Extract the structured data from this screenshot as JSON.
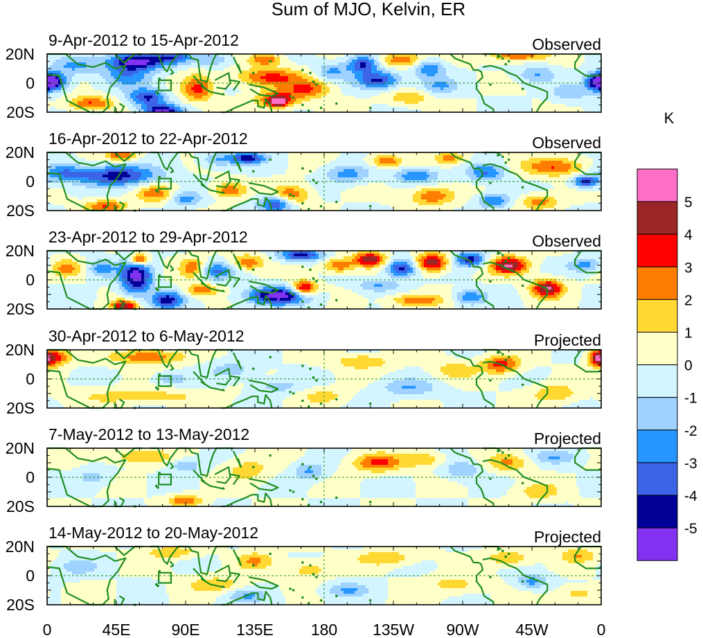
{
  "chart_data": {
    "type": "heatmap",
    "title": "Sum of MJO, Kelvin, ER",
    "units": "K",
    "x_ticks": [
      "0",
      "45E",
      "90E",
      "135E",
      "180",
      "135W",
      "90W",
      "45W",
      "0"
    ],
    "y_ticks": [
      "20N",
      "0",
      "20S"
    ],
    "xlim": [
      0,
      360
    ],
    "ylim": [
      -20,
      20
    ],
    "colorbar": {
      "levels": [
        "5",
        "4",
        "3",
        "2",
        "1",
        "0",
        "-1",
        "-2",
        "-3",
        "-4",
        "-5"
      ],
      "colors": [
        "#ff6ec7",
        "#9c2626",
        "#ff0000",
        "#ff7d00",
        "#ffd932",
        "#ffffc8",
        "#d2f5ff",
        "#a0d2ff",
        "#2896ff",
        "#3c64e6",
        "#000096",
        "#8232f0"
      ]
    },
    "panels": [
      {
        "date_range": "9-Apr-2012 to 15-Apr-2012",
        "status": "Observed",
        "features": [
          {
            "lon": 4,
            "lat": 1,
            "val": -4.5,
            "rx": 10,
            "ry": 6
          },
          {
            "lon": 28,
            "lat": -14,
            "val": 3.2,
            "rx": 14,
            "ry": 5
          },
          {
            "lon": 58,
            "lat": 15,
            "val": -5.5,
            "rx": 18,
            "ry": 6
          },
          {
            "lon": 52,
            "lat": 5,
            "val": -2.5,
            "rx": 16,
            "ry": 8
          },
          {
            "lon": 18,
            "lat": 12,
            "val": -2.2,
            "rx": 14,
            "ry": 6
          },
          {
            "lon": 65,
            "lat": -10,
            "val": -4.2,
            "rx": 12,
            "ry": 6
          },
          {
            "lon": 82,
            "lat": 18,
            "val": -3,
            "rx": 12,
            "ry": 5
          },
          {
            "lon": 98,
            "lat": -4,
            "val": 3.2,
            "rx": 10,
            "ry": 9
          },
          {
            "lon": 75,
            "lat": -19,
            "val": -5.2,
            "rx": 12,
            "ry": 4
          },
          {
            "lon": 108,
            "lat": 16,
            "val": -1.8,
            "rx": 12,
            "ry": 5
          },
          {
            "lon": 145,
            "lat": 4,
            "val": 3.3,
            "rx": 22,
            "ry": 6
          },
          {
            "lon": 150,
            "lat": -11,
            "val": 3.6,
            "rx": 14,
            "ry": 6
          },
          {
            "lon": 150,
            "lat": -13,
            "val": 5,
            "rx": 5,
            "ry": 3
          },
          {
            "lon": 142,
            "lat": 16,
            "val": 3,
            "rx": 10,
            "ry": 4
          },
          {
            "lon": 170,
            "lat": -4,
            "val": 3,
            "rx": 14,
            "ry": 6
          },
          {
            "lon": 185,
            "lat": 8,
            "val": -2.2,
            "rx": 10,
            "ry": 6
          },
          {
            "lon": 205,
            "lat": 13,
            "val": -4.3,
            "rx": 10,
            "ry": 6
          },
          {
            "lon": 215,
            "lat": 2,
            "val": -4.3,
            "rx": 14,
            "ry": 6
          },
          {
            "lon": 230,
            "lat": 16,
            "val": 3,
            "rx": 14,
            "ry": 5
          },
          {
            "lon": 248,
            "lat": 10,
            "val": -3,
            "rx": 10,
            "ry": 6
          },
          {
            "lon": 255,
            "lat": -2,
            "val": -2,
            "rx": 12,
            "ry": 6
          },
          {
            "lon": 235,
            "lat": -10,
            "val": 2,
            "rx": 14,
            "ry": 5
          },
          {
            "lon": 305,
            "lat": 19,
            "val": 3,
            "rx": 18,
            "ry": 4
          },
          {
            "lon": 318,
            "lat": 6,
            "val": -2,
            "rx": 12,
            "ry": 6
          },
          {
            "lon": 340,
            "lat": -7,
            "val": -1.8,
            "rx": 12,
            "ry": 6
          },
          {
            "lon": 358,
            "lat": 1,
            "val": -4.5,
            "rx": 8,
            "ry": 6
          }
        ]
      },
      {
        "date_range": "16-Apr-2012 to 22-Apr-2012",
        "status": "Observed",
        "features": [
          {
            "lon": 10,
            "lat": 6,
            "val": -2.5,
            "rx": 14,
            "ry": 6
          },
          {
            "lon": 45,
            "lat": 4,
            "val": -4.5,
            "rx": 26,
            "ry": 7
          },
          {
            "lon": 48,
            "lat": 18,
            "val": 3,
            "rx": 10,
            "ry": 4
          },
          {
            "lon": 38,
            "lat": -17,
            "val": 3,
            "rx": 14,
            "ry": 4
          },
          {
            "lon": 70,
            "lat": -8,
            "val": 2.5,
            "rx": 12,
            "ry": 6
          },
          {
            "lon": 90,
            "lat": -12,
            "val": -2.5,
            "rx": 10,
            "ry": 5
          },
          {
            "lon": 118,
            "lat": -6,
            "val": 3,
            "rx": 10,
            "ry": 5
          },
          {
            "lon": 110,
            "lat": 15,
            "val": -2,
            "rx": 10,
            "ry": 5
          },
          {
            "lon": 130,
            "lat": 16,
            "val": -4.5,
            "rx": 12,
            "ry": 4
          },
          {
            "lon": 158,
            "lat": -10,
            "val": 3.6,
            "rx": 12,
            "ry": 7
          },
          {
            "lon": 150,
            "lat": -15,
            "val": -4.5,
            "rx": 12,
            "ry": 6
          },
          {
            "lon": 195,
            "lat": 5,
            "val": -2.5,
            "rx": 14,
            "ry": 6
          },
          {
            "lon": 220,
            "lat": 14,
            "val": 3,
            "rx": 10,
            "ry": 4
          },
          {
            "lon": 240,
            "lat": 4,
            "val": -3,
            "rx": 14,
            "ry": 5
          },
          {
            "lon": 250,
            "lat": -10,
            "val": 3,
            "rx": 14,
            "ry": 6
          },
          {
            "lon": 262,
            "lat": 16,
            "val": 2.5,
            "rx": 10,
            "ry": 4
          },
          {
            "lon": 285,
            "lat": 6,
            "val": -3,
            "rx": 12,
            "ry": 6
          },
          {
            "lon": 290,
            "lat": -13,
            "val": -3,
            "rx": 10,
            "ry": 5
          },
          {
            "lon": 330,
            "lat": 10,
            "val": 3,
            "rx": 20,
            "ry": 6
          },
          {
            "lon": 350,
            "lat": 0,
            "val": -4.5,
            "rx": 8,
            "ry": 4
          },
          {
            "lon": 320,
            "lat": -14,
            "val": 2.5,
            "rx": 12,
            "ry": 5
          }
        ]
      },
      {
        "date_range": "23-Apr-2012 to 29-Apr-2012",
        "status": "Observed",
        "features": [
          {
            "lon": 12,
            "lat": 8,
            "val": 2.2,
            "rx": 12,
            "ry": 6
          },
          {
            "lon": 58,
            "lat": 2,
            "val": -5.5,
            "rx": 10,
            "ry": 12
          },
          {
            "lon": 60,
            "lat": 14,
            "val": 5,
            "rx": 6,
            "ry": 4
          },
          {
            "lon": 35,
            "lat": 8,
            "val": -2.5,
            "rx": 10,
            "ry": 6
          },
          {
            "lon": 78,
            "lat": -14,
            "val": -4.5,
            "rx": 10,
            "ry": 6
          },
          {
            "lon": 50,
            "lat": -18,
            "val": 5,
            "rx": 8,
            "ry": 4
          },
          {
            "lon": 95,
            "lat": 8,
            "val": 3,
            "rx": 8,
            "ry": 7
          },
          {
            "lon": 110,
            "lat": 6,
            "val": -3,
            "rx": 12,
            "ry": 6
          },
          {
            "lon": 100,
            "lat": -7,
            "val": 3,
            "rx": 10,
            "ry": 4
          },
          {
            "lon": 130,
            "lat": 12,
            "val": 3,
            "rx": 10,
            "ry": 5
          },
          {
            "lon": 150,
            "lat": -11,
            "val": -5.5,
            "rx": 20,
            "ry": 6
          },
          {
            "lon": 167,
            "lat": -6,
            "val": 5,
            "rx": 8,
            "ry": 5
          },
          {
            "lon": 165,
            "lat": 17,
            "val": -4.5,
            "rx": 14,
            "ry": 4
          },
          {
            "lon": 210,
            "lat": 14,
            "val": 5,
            "rx": 10,
            "ry": 5
          },
          {
            "lon": 190,
            "lat": 10,
            "val": 3,
            "rx": 10,
            "ry": 5
          },
          {
            "lon": 230,
            "lat": 8,
            "val": -4.5,
            "rx": 10,
            "ry": 6
          },
          {
            "lon": 250,
            "lat": 12,
            "val": 5,
            "rx": 10,
            "ry": 6
          },
          {
            "lon": 215,
            "lat": -4,
            "val": -2,
            "rx": 14,
            "ry": 4
          },
          {
            "lon": 240,
            "lat": -14,
            "val": 3,
            "rx": 16,
            "ry": 4
          },
          {
            "lon": 300,
            "lat": 10,
            "val": 5,
            "rx": 12,
            "ry": 6
          },
          {
            "lon": 325,
            "lat": -6,
            "val": 5,
            "rx": 10,
            "ry": 6
          },
          {
            "lon": 275,
            "lat": 14,
            "val": -4.5,
            "rx": 10,
            "ry": 5
          },
          {
            "lon": 350,
            "lat": 10,
            "val": -2.5,
            "rx": 12,
            "ry": 5
          },
          {
            "lon": 275,
            "lat": -12,
            "val": -3,
            "rx": 10,
            "ry": 5
          }
        ]
      },
      {
        "date_range": "30-Apr-2012 to 6-May-2012",
        "status": "Projected",
        "features": [
          {
            "lon": 5,
            "lat": 15,
            "val": 3.5,
            "rx": 10,
            "ry": 6
          },
          {
            "lon": 65,
            "lat": 15,
            "val": 3,
            "rx": 22,
            "ry": 5
          },
          {
            "lon": 60,
            "lat": -12,
            "val": 1.6,
            "rx": 40,
            "ry": 5
          },
          {
            "lon": 80,
            "lat": 0,
            "val": -2,
            "rx": 10,
            "ry": 4
          },
          {
            "lon": 120,
            "lat": 6,
            "val": -1.5,
            "rx": 16,
            "ry": 6
          },
          {
            "lon": 150,
            "lat": -5,
            "val": -1.5,
            "rx": 14,
            "ry": 5
          },
          {
            "lon": 205,
            "lat": 12,
            "val": 2,
            "rx": 18,
            "ry": 5
          },
          {
            "lon": 235,
            "lat": -6,
            "val": -2,
            "rx": 18,
            "ry": 6
          },
          {
            "lon": 265,
            "lat": 6,
            "val": 1.6,
            "rx": 14,
            "ry": 6
          },
          {
            "lon": 295,
            "lat": 10,
            "val": 3.5,
            "rx": 12,
            "ry": 6
          },
          {
            "lon": 330,
            "lat": -10,
            "val": 2,
            "rx": 14,
            "ry": 6
          },
          {
            "lon": 358,
            "lat": 14,
            "val": 3.5,
            "rx": 6,
            "ry": 6
          },
          {
            "lon": 180,
            "lat": -12,
            "val": 1.5,
            "rx": 14,
            "ry": 5
          }
        ]
      },
      {
        "date_range": "7-May-2012 to 13-May-2012",
        "status": "Projected",
        "features": [
          {
            "lon": 60,
            "lat": 14,
            "val": 2,
            "rx": 20,
            "ry": 5
          },
          {
            "lon": 90,
            "lat": 8,
            "val": -2,
            "rx": 10,
            "ry": 5
          },
          {
            "lon": 90,
            "lat": -16,
            "val": 3,
            "rx": 10,
            "ry": 4
          },
          {
            "lon": 130,
            "lat": 5,
            "val": 1.6,
            "rx": 14,
            "ry": 8
          },
          {
            "lon": 170,
            "lat": 4,
            "val": -2.2,
            "rx": 10,
            "ry": 6
          },
          {
            "lon": 215,
            "lat": 10,
            "val": 3.2,
            "rx": 16,
            "ry": 6
          },
          {
            "lon": 245,
            "lat": 12,
            "val": 2,
            "rx": 12,
            "ry": 5
          },
          {
            "lon": 270,
            "lat": 5,
            "val": -2,
            "rx": 12,
            "ry": 6
          },
          {
            "lon": 300,
            "lat": 10,
            "val": 2,
            "rx": 14,
            "ry": 6
          },
          {
            "lon": 330,
            "lat": 14,
            "val": -1.8,
            "rx": 16,
            "ry": 5
          },
          {
            "lon": 320,
            "lat": -10,
            "val": 1.6,
            "rx": 14,
            "ry": 6
          },
          {
            "lon": 30,
            "lat": 0,
            "val": -1.5,
            "rx": 10,
            "ry": 6
          }
        ]
      },
      {
        "date_range": "14-May-2012 to 20-May-2012",
        "status": "Projected",
        "features": [
          {
            "lon": 20,
            "lat": 6,
            "val": -1.5,
            "rx": 14,
            "ry": 6
          },
          {
            "lon": 80,
            "lat": 16,
            "val": 2,
            "rx": 16,
            "ry": 4
          },
          {
            "lon": 110,
            "lat": -6,
            "val": 1.6,
            "rx": 20,
            "ry": 6
          },
          {
            "lon": 135,
            "lat": 10,
            "val": 2,
            "rx": 12,
            "ry": 6
          },
          {
            "lon": 130,
            "lat": -14,
            "val": -2,
            "rx": 14,
            "ry": 5
          },
          {
            "lon": 170,
            "lat": 4,
            "val": 1.6,
            "rx": 14,
            "ry": 6
          },
          {
            "lon": 195,
            "lat": -10,
            "val": -2,
            "rx": 14,
            "ry": 5
          },
          {
            "lon": 220,
            "lat": 12,
            "val": 2,
            "rx": 18,
            "ry": 5
          },
          {
            "lon": 265,
            "lat": -6,
            "val": 1.6,
            "rx": 16,
            "ry": 6
          },
          {
            "lon": 300,
            "lat": 12,
            "val": 2,
            "rx": 14,
            "ry": 5
          },
          {
            "lon": 315,
            "lat": -4,
            "val": -2.5,
            "rx": 10,
            "ry": 5
          },
          {
            "lon": 345,
            "lat": 14,
            "val": 2,
            "rx": 12,
            "ry": 5
          },
          {
            "lon": 345,
            "lat": -12,
            "val": 1.6,
            "rx": 12,
            "ry": 5
          }
        ]
      }
    ]
  }
}
